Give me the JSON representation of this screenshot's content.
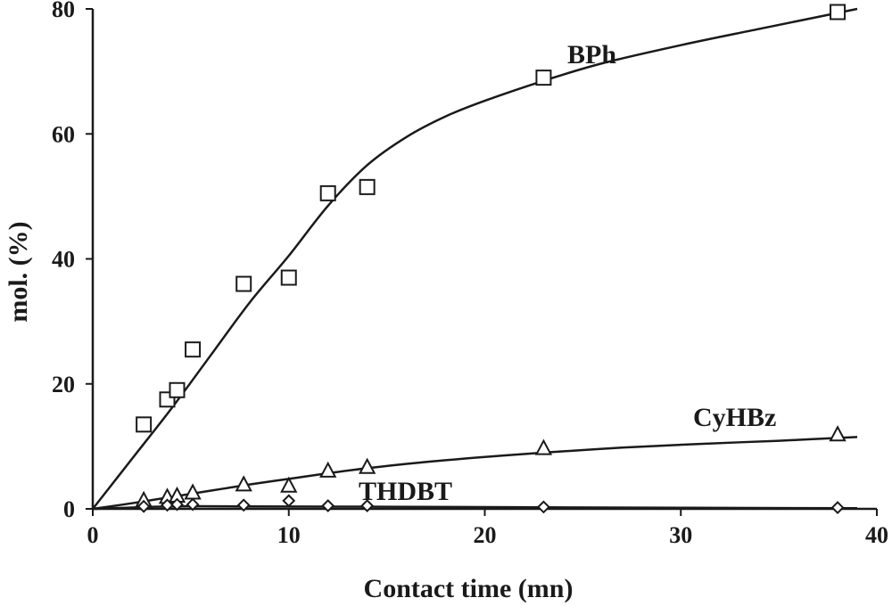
{
  "chart_data": {
    "type": "scatter",
    "title": "",
    "xlabel": "Contact time (mn)",
    "ylabel": "mol. (%)",
    "xlim": [
      0,
      40
    ],
    "ylim": [
      0,
      80
    ],
    "xticks": [
      "0",
      "10",
      "20",
      "30",
      "40"
    ],
    "yticks": [
      "0",
      "20",
      "40",
      "60",
      "80"
    ],
    "grid": false,
    "legend": "none",
    "series": [
      {
        "name": "BPh",
        "marker": "square",
        "x": [
          2.6,
          3.8,
          4.3,
          5.1,
          7.7,
          10.0,
          12.0,
          14.0,
          23.0,
          38.0
        ],
        "y": [
          13.5,
          17.5,
          19.0,
          25.5,
          36.0,
          37.0,
          50.5,
          51.5,
          69.0,
          79.5
        ],
        "fit_curve": [
          [
            0,
            0
          ],
          [
            2,
            8
          ],
          [
            4,
            16
          ],
          [
            6,
            24.5
          ],
          [
            8,
            33
          ],
          [
            10,
            40.5
          ],
          [
            12,
            48.5
          ],
          [
            14,
            55
          ],
          [
            16,
            59.5
          ],
          [
            18,
            62.8
          ],
          [
            20,
            65.3
          ],
          [
            23,
            68.5
          ],
          [
            26,
            71.3
          ],
          [
            30,
            74.2
          ],
          [
            34,
            76.8
          ],
          [
            39,
            80
          ]
        ]
      },
      {
        "name": "CyHBz",
        "marker": "triangle",
        "x": [
          2.6,
          3.8,
          4.3,
          5.1,
          7.7,
          10.0,
          12.0,
          14.0,
          23.0,
          38.0
        ],
        "y": [
          1.3,
          1.8,
          2.0,
          2.5,
          3.8,
          3.6,
          6.0,
          6.6,
          9.6,
          11.8
        ],
        "fit_curve": [
          [
            0,
            0
          ],
          [
            2,
            0.9
          ],
          [
            4,
            1.9
          ],
          [
            6,
            2.9
          ],
          [
            8,
            3.9
          ],
          [
            10,
            4.8
          ],
          [
            12,
            5.7
          ],
          [
            14,
            6.5
          ],
          [
            17,
            7.5
          ],
          [
            20,
            8.3
          ],
          [
            23,
            9.0
          ],
          [
            27,
            9.8
          ],
          [
            31,
            10.4
          ],
          [
            35,
            10.9
          ],
          [
            39,
            11.5
          ]
        ]
      },
      {
        "name": "THDBT",
        "marker": "diamond",
        "x": [
          2.6,
          3.8,
          4.3,
          5.1,
          7.7,
          10.0,
          12.0,
          14.0,
          23.0,
          38.0
        ],
        "y": [
          0.4,
          0.6,
          0.7,
          0.7,
          0.6,
          1.3,
          0.5,
          0.5,
          0.3,
          0.2
        ],
        "fit_curve": [
          [
            0,
            0
          ],
          [
            4,
            0.4
          ],
          [
            8,
            0.4
          ],
          [
            14,
            0.35
          ],
          [
            23,
            0.25
          ],
          [
            39,
            0.1
          ]
        ]
      }
    ]
  }
}
